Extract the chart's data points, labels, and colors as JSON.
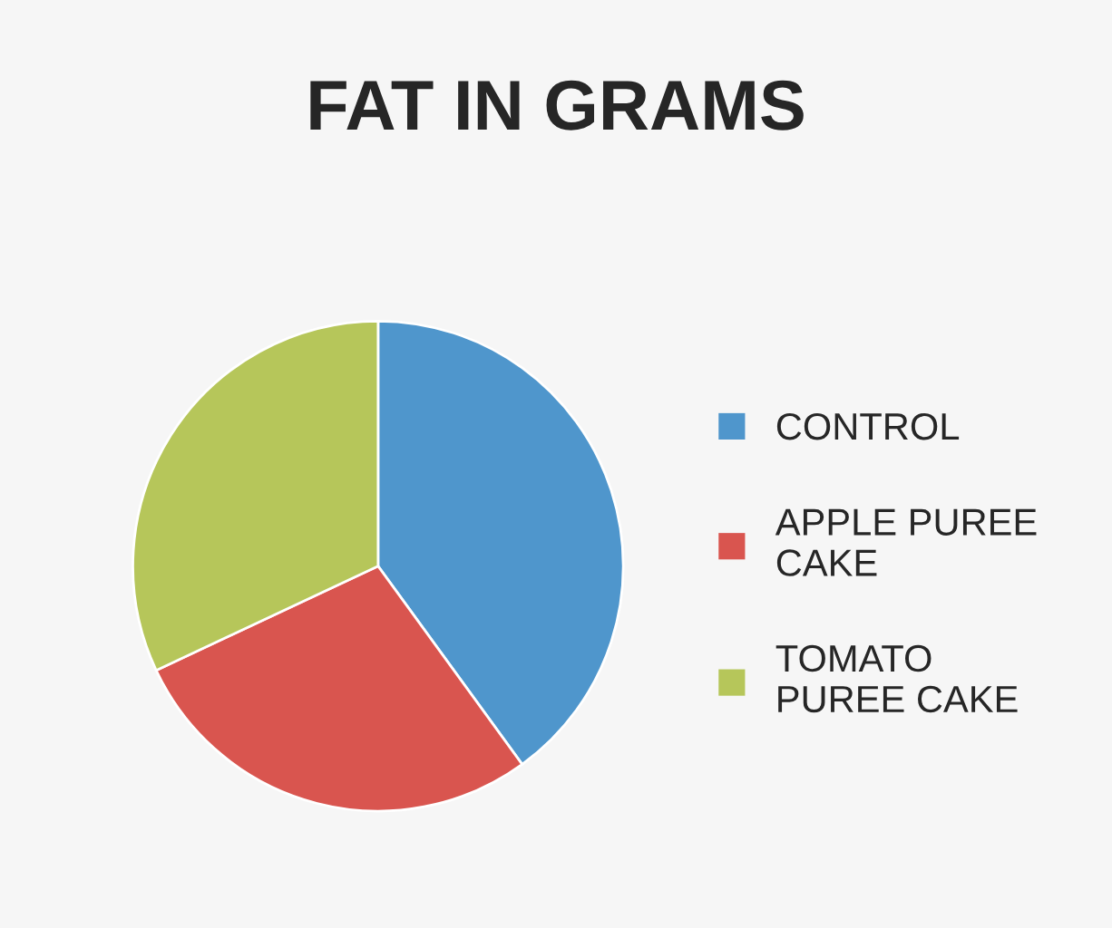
{
  "chart_data": {
    "type": "pie",
    "title": "FAT IN GRAMS",
    "categories": [
      "CONTROL",
      "APPLE PUREE\nCAKE",
      "TOMATO\nPUREE CAKE"
    ],
    "values": [
      40,
      28,
      32
    ],
    "colors": [
      "#4f96cc",
      "#d9554f",
      "#b6c65a"
    ],
    "legend": "right"
  }
}
